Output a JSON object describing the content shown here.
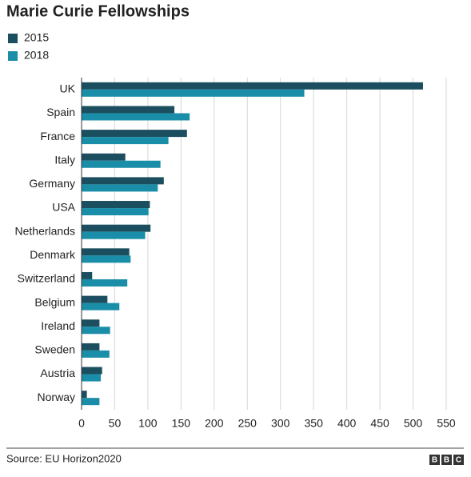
{
  "chart_data": {
    "type": "hbar",
    "title": "Marie Curie Fellowships",
    "categories": [
      "UK",
      "Spain",
      "France",
      "Italy",
      "Germany",
      "USA",
      "Netherlands",
      "Denmark",
      "Switzerland",
      "Belgium",
      "Ireland",
      "Sweden",
      "Austria",
      "Norway"
    ],
    "series": [
      {
        "name": "2015",
        "color": "#1b4f5f",
        "values": [
          515,
          140,
          159,
          66,
          124,
          103,
          104,
          72,
          16,
          39,
          27,
          27,
          31,
          8
        ]
      },
      {
        "name": "2018",
        "color": "#1a8ea8",
        "values": [
          336,
          163,
          131,
          119,
          115,
          101,
          96,
          74,
          69,
          57,
          43,
          42,
          29,
          27
        ]
      }
    ],
    "xlim": [
      0,
      550
    ],
    "xticks": [
      0,
      50,
      100,
      150,
      200,
      250,
      300,
      350,
      400,
      450,
      500,
      550
    ],
    "grid": true,
    "source": "Source: EU Horizon2020",
    "logo": [
      "B",
      "B",
      "C"
    ]
  }
}
